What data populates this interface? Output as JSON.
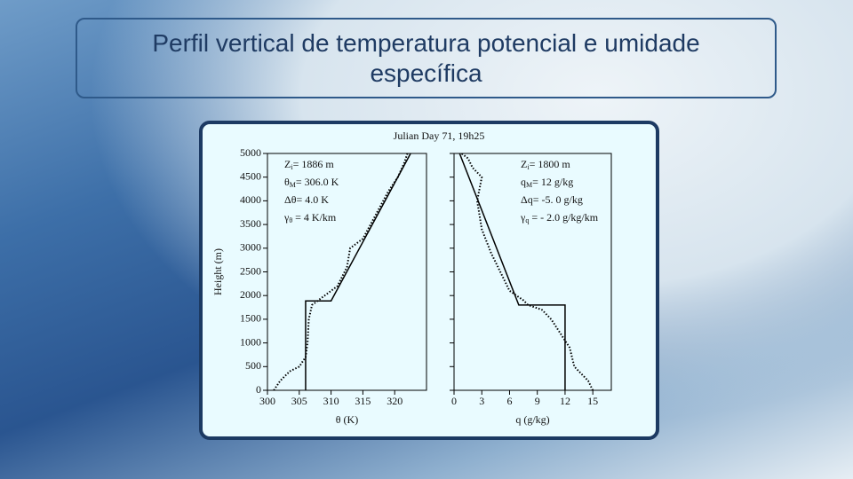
{
  "header": {
    "title": "Perfil vertical de temperatura potencial e umidade específica"
  },
  "chart_data": [
    {
      "type": "line",
      "title": "Julian Day 71, 19h25",
      "ylabel": "Height (m)",
      "xlabel": "θ (K)",
      "xlim": [
        300,
        325
      ],
      "xticks": [
        300,
        305,
        310,
        315,
        320
      ],
      "ylim": [
        0,
        5000
      ],
      "yticks": [
        0,
        500,
        1000,
        1500,
        2000,
        2500,
        3000,
        3500,
        4000,
        4500,
        5000
      ],
      "annotations": [
        {
          "main": "Z",
          "sub": "i",
          "rest": "= 1886 m"
        },
        {
          "main": "θ",
          "sub": "M",
          "rest": "= 306.0 K"
        },
        {
          "main": "Δθ",
          "sub": "",
          "rest": "= 4.0 K"
        },
        {
          "main": "γ",
          "sub": "θ",
          "rest": " = 4 K/km"
        }
      ],
      "series": [
        {
          "style": "solid",
          "color": "#000000",
          "x": [
            306,
            306,
            310,
            322.5
          ],
          "y": [
            0,
            1886,
            1886,
            5000
          ]
        },
        {
          "style": "dotted",
          "color": "#000000",
          "x": [
            301,
            302,
            303.5,
            305,
            306,
            306.3,
            306.5,
            307,
            309,
            311,
            312.5,
            313,
            315,
            317,
            319,
            320.5,
            321.5,
            322
          ],
          "y": [
            0,
            200,
            400,
            500,
            700,
            1000,
            1500,
            1800,
            2000,
            2200,
            2600,
            3000,
            3200,
            3700,
            4200,
            4500,
            4800,
            5000
          ]
        }
      ]
    },
    {
      "type": "line",
      "xlabel": "q (g/kg)",
      "xlim": [
        0,
        17
      ],
      "xticks": [
        0,
        3,
        6,
        9,
        12,
        15
      ],
      "ylim": [
        0,
        5000
      ],
      "yticks": [
        0,
        500,
        1000,
        1500,
        2000,
        2500,
        3000,
        3500,
        4000,
        4500,
        5000
      ],
      "annotations": [
        {
          "main": "Z",
          "sub": "i",
          "rest": "= 1800 m"
        },
        {
          "main": "q",
          "sub": "M",
          "rest": "= 12 g/kg"
        },
        {
          "main": "Δq",
          "sub": "",
          "rest": "= -5. 0 g/kg"
        },
        {
          "main": "γ",
          "sub": "q",
          "rest": " = - 2.0 g/kg/km"
        }
      ],
      "series": [
        {
          "style": "solid",
          "color": "#000000",
          "x": [
            12,
            12,
            7,
            0.6
          ],
          "y": [
            0,
            1800,
            1800,
            5000
          ]
        },
        {
          "style": "dotted",
          "color": "#000000",
          "x": [
            15,
            14.5,
            13,
            12.5,
            11.5,
            10.5,
            9.5,
            8,
            7.5,
            6,
            5,
            4,
            3,
            2.5,
            3,
            2,
            1.5,
            0.8
          ],
          "y": [
            0,
            200,
            500,
            900,
            1200,
            1500,
            1700,
            1800,
            1900,
            2100,
            2500,
            2900,
            3400,
            4000,
            4500,
            4700,
            4900,
            5000
          ]
        }
      ]
    }
  ]
}
